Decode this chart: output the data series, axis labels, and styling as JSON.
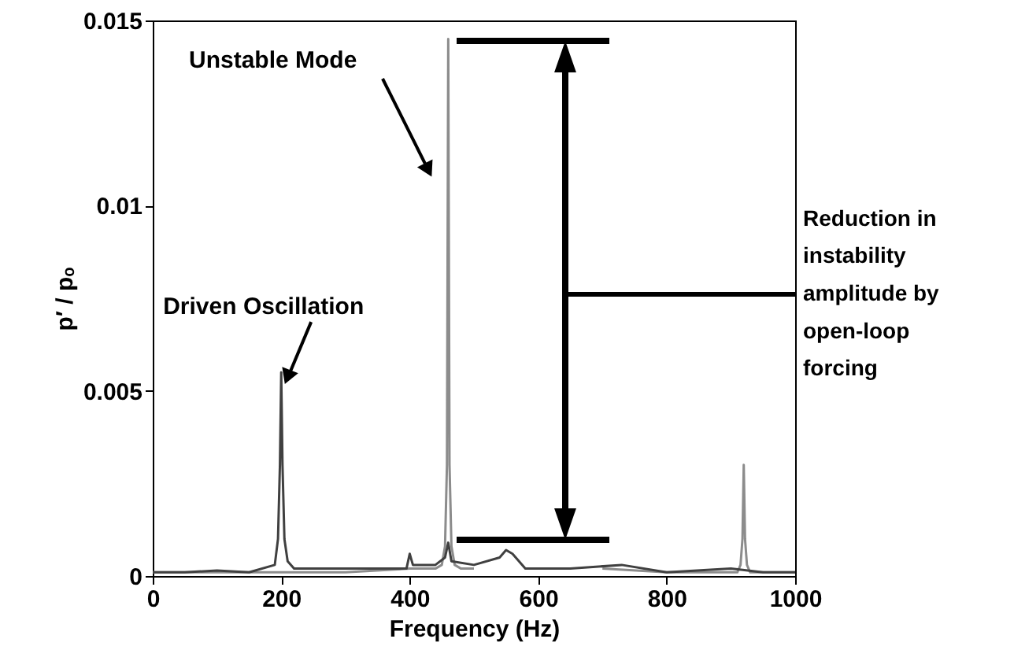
{
  "chart_data": {
    "type": "line",
    "xlabel": "Frequency (Hz)",
    "ylabel": "p′ / pₒ",
    "xlim": [
      0,
      1000
    ],
    "xticks": [
      0,
      200,
      400,
      600,
      800,
      1000
    ],
    "ylim": [
      0,
      0.015
    ],
    "yticks": [
      0,
      0.005,
      0.01,
      0.015
    ],
    "grid": false,
    "marker": "none",
    "line_style": "solid",
    "annotations": [
      "Unstable Mode",
      {
        "text": "Driven Oscillation",
        "x": 200,
        "y": 0.0055
      },
      "Reduction in instability amplitude by open-loop forcing"
    ],
    "series": [
      {
        "color": "#8c8c8c",
        "x": [
          0,
          100,
          200,
          300,
          400,
          440,
          450,
          455,
          458,
          460,
          462,
          465,
          470,
          480,
          500,
          600,
          700,
          800,
          900,
          910,
          915,
          918,
          920,
          922,
          925,
          930,
          940,
          1000
        ],
        "values": [
          0.0001,
          0.0001,
          0.0001,
          0.0001,
          0.0002,
          0.0002,
          0.0003,
          0.0008,
          0.003,
          0.0145,
          0.003,
          0.0008,
          0.0003,
          0.0002,
          0.0002,
          null,
          0.0002,
          0.0001,
          0.0001,
          0.0001,
          0.0003,
          0.001,
          0.003,
          0.001,
          0.0003,
          0.0001,
          0.0001,
          0.0001
        ]
      },
      {
        "color": "#404040",
        "x": [
          0,
          50,
          100,
          150,
          190,
          195,
          198,
          200,
          202,
          205,
          210,
          220,
          300,
          350,
          395,
          400,
          405,
          440,
          455,
          460,
          465,
          500,
          540,
          550,
          560,
          580,
          650,
          730,
          800,
          900,
          950,
          1000
        ],
        "values": [
          0.0001,
          0.0001,
          0.00015,
          0.0001,
          0.0003,
          0.001,
          0.003,
          0.0055,
          0.003,
          0.001,
          0.0004,
          0.0002,
          0.0002,
          0.0002,
          0.0002,
          0.0006,
          0.0003,
          0.0003,
          0.0005,
          0.0009,
          0.0004,
          0.0003,
          0.0005,
          0.0007,
          0.0006,
          0.0002,
          0.0002,
          0.0003,
          0.0001,
          0.0002,
          0.0001,
          0.0001
        ]
      }
    ]
  }
}
